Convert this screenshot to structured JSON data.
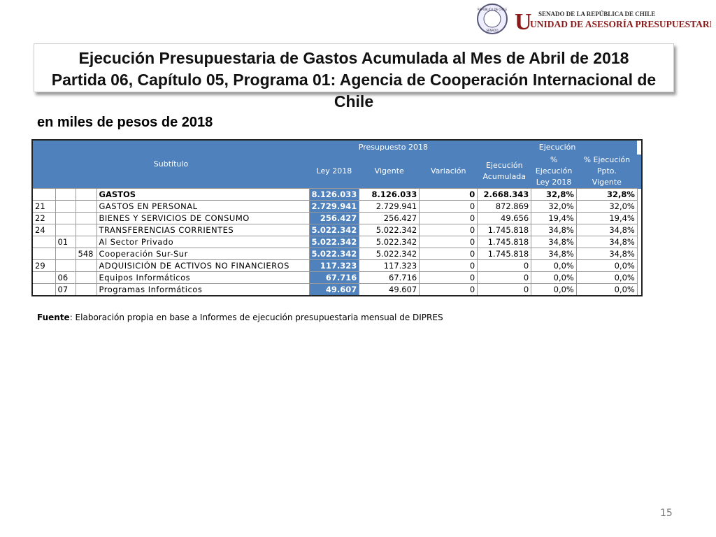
{
  "header": {
    "seal_top": "REPÚBLICA DE CHILE",
    "seal_bottom": "SENADO",
    "org_line1": "SENADO DE LA REPÚBLICA DE CHILE",
    "org_line2": "UNIDAD DE ASESORÍA PRESUPUESTARIA"
  },
  "title": {
    "line1": "Ejecución Presupuestaria de Gastos Acumulada al Mes de Abril de 2018",
    "line2": "Partida 06, Capítulo 05, Programa 01: Agencia de Cooperación Internacional de Chile"
  },
  "subtitle": "en miles de pesos de 2018",
  "table": {
    "headers": {
      "subtitulo": "Subtítulo",
      "presupuesto": "Presupuesto 2018",
      "ley": "Ley 2018",
      "vigente": "Vigente",
      "variacion": "Variación",
      "ejecucion": "Ejecución",
      "acumulada": "Ejecución Acumulada",
      "pct_ley": "% Ejecución Ley 2018",
      "pct_vigente": "% Ejecución Ppto. Vigente"
    },
    "rows": [
      {
        "nombre": "GASTOS",
        "ley": "8.126.033",
        "vigente": "8.126.033",
        "variacion": "0",
        "acumulada": "2.668.343",
        "pct_ley": "32,8%",
        "pct_vigente": "32,8%"
      },
      {
        "sub": "21",
        "nombre": "GASTOS EN PERSONAL",
        "ley": "2.729.941",
        "vigente": "2.729.941",
        "variacion": "0",
        "acumulada": "872.869",
        "pct_ley": "32,0%",
        "pct_vigente": "32,0%"
      },
      {
        "sub": "22",
        "nombre": "BIENES Y SERVICIOS DE CONSUMO",
        "ley": "256.427",
        "vigente": "256.427",
        "variacion": "0",
        "acumulada": "49.656",
        "pct_ley": "19,4%",
        "pct_vigente": "19,4%"
      },
      {
        "sub": "24",
        "nombre": "TRANSFERENCIAS CORRIENTES",
        "ley": "5.022.342",
        "vigente": "5.022.342",
        "variacion": "0",
        "acumulada": "1.745.818",
        "pct_ley": "34,8%",
        "pct_vigente": "34,8%"
      },
      {
        "item": "01",
        "nombre": "Al Sector Privado",
        "ley": "5.022.342",
        "vigente": "5.022.342",
        "variacion": "0",
        "acumulada": "1.745.818",
        "pct_ley": "34,8%",
        "pct_vigente": "34,8%"
      },
      {
        "asig": "548",
        "nombre": "Cooperación Sur-Sur",
        "ley": "5.022.342",
        "vigente": "5.022.342",
        "variacion": "0",
        "acumulada": "1.745.818",
        "pct_ley": "34,8%",
        "pct_vigente": "34,8%"
      },
      {
        "sub": "29",
        "nombre": "ADQUISICIÓN DE ACTIVOS NO FINANCIEROS",
        "ley": "117.323",
        "vigente": "117.323",
        "variacion": "0",
        "acumulada": "0",
        "pct_ley": "0,0%",
        "pct_vigente": "0,0%"
      },
      {
        "item": "06",
        "nombre": "Equipos Informáticos",
        "ley": "67.716",
        "vigente": "67.716",
        "variacion": "0",
        "acumulada": "0",
        "pct_ley": "0,0%",
        "pct_vigente": "0,0%"
      },
      {
        "item": "07",
        "nombre": "Programas Informáticos",
        "ley": "49.607",
        "vigente": "49.607",
        "variacion": "0",
        "acumulada": "0",
        "pct_ley": "0,0%",
        "pct_vigente": "0,0%"
      }
    ]
  },
  "footer": {
    "source_label": "Fuente",
    "source_text": ": Elaboración propia en base  a Informes de ejecución presupuestaria mensual de DIPRES",
    "page": "15"
  }
}
